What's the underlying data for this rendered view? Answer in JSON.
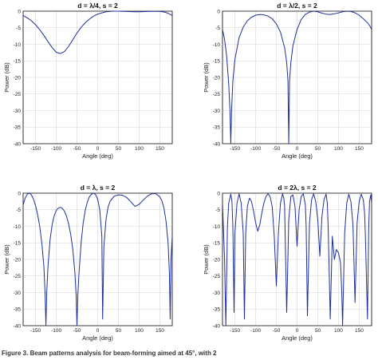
{
  "figure": {
    "caption": "Figure 3. Beam patterns analysis for beam-forming aimed at 45°, with 2"
  },
  "style": {
    "curve_color": "#1f2f9e",
    "grid_color": "#d6d6d6",
    "axis_color": "#2a2a2a"
  },
  "chart_data": [
    {
      "type": "line",
      "title": "d = λ/4, s = 2",
      "xlabel": "Angle (deg)",
      "ylabel": "Power (dB)",
      "xlim": [
        -180,
        180
      ],
      "ylim": [
        -40,
        0
      ],
      "xticks": [
        "-150",
        "-100",
        "-50",
        "0",
        "50",
        "100",
        "150"
      ],
      "yticks": [
        "0",
        "-5",
        "-10",
        "-15",
        "-20",
        "-25",
        "-30",
        "-35",
        "-40"
      ],
      "grid": true,
      "series": [
        {
          "x": [
            -180,
            -170,
            -160,
            -150,
            -140,
            -130,
            -120,
            -110,
            -100,
            -90,
            -80,
            -70,
            -60,
            -50,
            -40,
            -30,
            -20,
            -10,
            0,
            10,
            20,
            30,
            40,
            50,
            60,
            70,
            80,
            90,
            100,
            110,
            120,
            130,
            140,
            150,
            160,
            170,
            180
          ],
          "y": [
            -1.3,
            -2.0,
            -2.9,
            -4.1,
            -5.6,
            -7.3,
            -9.2,
            -11.0,
            -12.4,
            -12.8,
            -12.2,
            -10.6,
            -8.6,
            -6.6,
            -4.9,
            -3.5,
            -2.4,
            -1.5,
            -0.9,
            -0.5,
            -0.2,
            -0.05,
            0.0,
            0.0,
            -0.05,
            -0.1,
            -0.15,
            -0.2,
            -0.2,
            -0.15,
            -0.1,
            -0.05,
            -0.05,
            -0.1,
            -0.25,
            -0.6,
            -1.3
          ]
        }
      ]
    },
    {
      "type": "line",
      "title": "d = λ/2, s = 2",
      "xlabel": "Angle (deg)",
      "ylabel": "Power (dB)",
      "xlim": [
        -180,
        180
      ],
      "ylim": [
        -40,
        0
      ],
      "xticks": [
        "-150",
        "-100",
        "-50",
        "0",
        "50",
        "100",
        "150"
      ],
      "yticks": [
        "0",
        "-5",
        "-10",
        "-15",
        "-20",
        "-25",
        "-30",
        "-35",
        "-40"
      ],
      "grid": true,
      "series": [
        {
          "x": [
            -180,
            -175,
            -170,
            -165,
            -162,
            -160,
            -158,
            -155,
            -150,
            -140,
            -130,
            -120,
            -110,
            -100,
            -90,
            -80,
            -70,
            -60,
            -50,
            -40,
            -30,
            -25,
            -22,
            -20,
            -18,
            -15,
            -10,
            0,
            10,
            20,
            30,
            40,
            50,
            60,
            70,
            80,
            90,
            100,
            110,
            120,
            130,
            140,
            150,
            160,
            170,
            175,
            180
          ],
          "y": [
            -5.5,
            -8.5,
            -13.5,
            -22.0,
            -30.0,
            -40.0,
            -30.0,
            -21.0,
            -14.5,
            -8.0,
            -4.8,
            -2.9,
            -1.8,
            -1.2,
            -1.0,
            -1.1,
            -1.5,
            -2.3,
            -3.8,
            -6.3,
            -11.0,
            -15.5,
            -21.0,
            -40.0,
            -21.0,
            -15.5,
            -10.5,
            -5.5,
            -2.5,
            -1.0,
            -0.3,
            0.0,
            -0.2,
            -0.6,
            -0.9,
            -1.0,
            -0.8,
            -0.5,
            -0.2,
            0.0,
            -0.1,
            -0.5,
            -1.2,
            -2.3,
            -3.5,
            -4.3,
            -5.5
          ]
        }
      ]
    },
    {
      "type": "line",
      "title": "d = λ, s = 2",
      "xlabel": "Angle (deg)",
      "ylabel": "Power (dB)",
      "xlim": [
        -180,
        180
      ],
      "ylim": [
        -40,
        0
      ],
      "xticks": [
        "-150",
        "-100",
        "-50",
        "0",
        "50",
        "100",
        "150"
      ],
      "yticks": [
        "0",
        "-5",
        "-10",
        "-15",
        "-20",
        "-25",
        "-30",
        "-35",
        "-40"
      ],
      "grid": true,
      "series": [
        {
          "x": [
            -180,
            -175,
            -170,
            -165,
            -160,
            -155,
            -150,
            -145,
            -140,
            -135,
            -130,
            -127,
            -125,
            -123,
            -120,
            -115,
            -110,
            -105,
            -100,
            -95,
            -90,
            -85,
            -80,
            -75,
            -70,
            -65,
            -60,
            -55,
            -52,
            -50,
            -48,
            -45,
            -40,
            -35,
            -30,
            -25,
            -20,
            -15,
            -10,
            -5,
            0,
            5,
            10,
            12,
            15,
            20,
            25,
            30,
            40,
            50,
            60,
            70,
            80,
            90,
            100,
            110,
            120,
            130,
            140,
            150,
            155,
            160,
            165,
            170,
            173,
            175,
            177,
            180
          ],
          "y": [
            -3.5,
            -1.5,
            -0.3,
            0.0,
            -0.5,
            -1.8,
            -3.8,
            -6.5,
            -10.0,
            -15.0,
            -22.0,
            -30.0,
            -40.0,
            -30.0,
            -22.0,
            -14.0,
            -9.5,
            -6.8,
            -5.2,
            -4.5,
            -4.3,
            -4.6,
            -5.5,
            -7.0,
            -9.3,
            -12.5,
            -17.0,
            -24.0,
            -31.0,
            -40.0,
            -31.0,
            -24.0,
            -15.0,
            -9.0,
            -5.2,
            -2.7,
            -1.1,
            -0.3,
            0.0,
            -0.4,
            -1.8,
            -5.0,
            -13.0,
            -38.0,
            -16.0,
            -8.0,
            -4.2,
            -2.4,
            -0.9,
            -0.5,
            -0.6,
            -1.3,
            -2.6,
            -4.0,
            -3.4,
            -2.1,
            -0.9,
            -0.2,
            -0.1,
            -1.1,
            -2.3,
            -4.5,
            -8.5,
            -15.0,
            -24.0,
            -38.0,
            -20.0,
            -13.0
          ]
        }
      ]
    },
    {
      "type": "line",
      "title": "d = 2λ, s = 2",
      "xlabel": "Angle (deg)",
      "ylabel": "Power (dB)",
      "xlim": [
        -180,
        180
      ],
      "ylim": [
        -40,
        0
      ],
      "xticks": [
        "-150",
        "-100",
        "-50",
        "0",
        "50",
        "100",
        "150"
      ],
      "yticks": [
        "0",
        "-5",
        "-10",
        "-15",
        "-20",
        "-25",
        "-30",
        "-35",
        "-40"
      ],
      "grid": true,
      "series": [
        {
          "x": [
            -180,
            -175,
            -172,
            -168,
            -165,
            -160,
            -157,
            -155,
            -152,
            -150,
            -145,
            -140,
            -135,
            -130,
            -127,
            -124,
            -120,
            -115,
            -110,
            -105,
            -100,
            -95,
            -90,
            -85,
            -80,
            -75,
            -70,
            -65,
            -60,
            -55,
            -50,
            -45,
            -40,
            -35,
            -32,
            -30,
            -25,
            -20,
            -15,
            -10,
            -5,
            0,
            5,
            10,
            15,
            20,
            22,
            25,
            30,
            35,
            40,
            45,
            50,
            55,
            60,
            65,
            70,
            73,
            75,
            80,
            85,
            90,
            95,
            100,
            105,
            108,
            110,
            115,
            120,
            125,
            130,
            135,
            140,
            145,
            150,
            155,
            160,
            163,
            165,
            170,
            173,
            175,
            178,
            180
          ],
          "y": [
            -3.0,
            -20.0,
            -40.0,
            -10.0,
            -3.0,
            -0.3,
            -2.5,
            -10.0,
            -36.0,
            -12.0,
            -3.0,
            -0.2,
            -3.0,
            -12.0,
            -38.0,
            -12.0,
            -4.0,
            -1.5,
            -2.5,
            -5.5,
            -9.0,
            -11.5,
            -9.5,
            -6.0,
            -3.0,
            -1.0,
            -0.2,
            -1.0,
            -4.0,
            -13.0,
            -28.0,
            -12.0,
            -3.0,
            -0.2,
            -1.5,
            -4.0,
            -36.0,
            -8.0,
            -1.0,
            -0.5,
            -4.0,
            -16.0,
            -5.0,
            -1.0,
            -0.2,
            -3.5,
            -10.0,
            -37.0,
            -9.0,
            -2.0,
            -0.2,
            -2.5,
            -8.0,
            -19.0,
            -7.0,
            -2.0,
            -0.3,
            -3.0,
            -10.0,
            -38.0,
            -13.0,
            -20.0,
            -17.0,
            -18.0,
            -21.0,
            -30.0,
            -40.0,
            -12.0,
            -3.0,
            -0.3,
            -2.5,
            -9.5,
            -33.0,
            -9.0,
            -2.5,
            -0.3,
            -2.0,
            -6.0,
            -13.0,
            -38.0,
            -10.0,
            -2.5,
            -0.5,
            -3.0
          ]
        }
      ]
    }
  ]
}
